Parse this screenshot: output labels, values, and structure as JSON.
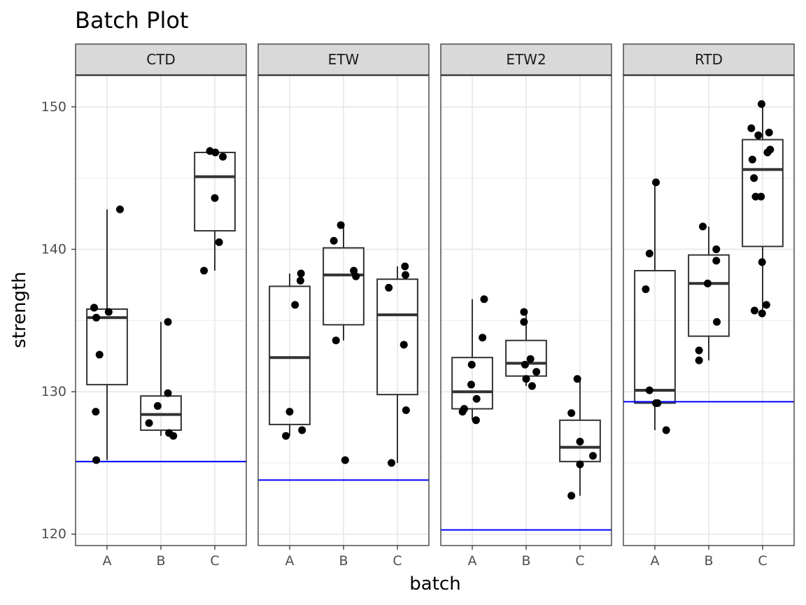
{
  "chart_data": {
    "type": "box",
    "title": "Batch Plot",
    "xlabel": "batch",
    "ylabel": "strength",
    "ylim": [
      119.2,
      152.2
    ],
    "yticks": [
      120,
      130,
      140,
      150
    ],
    "categories": [
      "A",
      "B",
      "C"
    ],
    "grid": true,
    "colors": {
      "reference_line": "#0000ff",
      "points": "#000000",
      "box": "#333333",
      "strip_fill": "#d9d9d9",
      "grid": "#ebebeb"
    },
    "panels": [
      {
        "name": "CTD",
        "reference_line": 125.1,
        "boxes": [
          {
            "category": "A",
            "min": 125.2,
            "q1": 130.5,
            "median": 135.2,
            "q3": 135.8,
            "max": 142.8
          },
          {
            "category": "B",
            "min": 126.9,
            "q1": 127.3,
            "median": 128.4,
            "q3": 129.7,
            "max": 134.9
          },
          {
            "category": "C",
            "min": 138.5,
            "q1": 141.3,
            "median": 145.1,
            "q3": 146.8,
            "max": 146.9
          }
        ],
        "points": [
          {
            "x": "A",
            "jitter": -0.24,
            "y": 135.9
          },
          {
            "x": "A",
            "jitter": -0.2,
            "y": 135.2
          },
          {
            "x": "A",
            "jitter": 0.03,
            "y": 135.6
          },
          {
            "x": "A",
            "jitter": -0.14,
            "y": 132.6
          },
          {
            "x": "A",
            "jitter": -0.21,
            "y": 128.6
          },
          {
            "x": "A",
            "jitter": -0.2,
            "y": 125.2
          },
          {
            "x": "A",
            "jitter": 0.24,
            "y": 142.8
          },
          {
            "x": "B",
            "jitter": -0.22,
            "y": 127.8
          },
          {
            "x": "B",
            "jitter": -0.06,
            "y": 129.0
          },
          {
            "x": "B",
            "jitter": 0.13,
            "y": 129.9
          },
          {
            "x": "B",
            "jitter": 0.15,
            "y": 127.1
          },
          {
            "x": "B",
            "jitter": 0.23,
            "y": 126.9
          },
          {
            "x": "B",
            "jitter": 0.13,
            "y": 134.9
          },
          {
            "x": "C",
            "jitter": -0.09,
            "y": 146.9
          },
          {
            "x": "C",
            "jitter": 0.01,
            "y": 146.8
          },
          {
            "x": "C",
            "jitter": 0.15,
            "y": 146.5
          },
          {
            "x": "C",
            "jitter": 0.0,
            "y": 143.6
          },
          {
            "x": "C",
            "jitter": 0.08,
            "y": 140.5
          },
          {
            "x": "C",
            "jitter": -0.2,
            "y": 138.5
          }
        ]
      },
      {
        "name": "ETW",
        "reference_line": 123.8,
        "boxes": [
          {
            "category": "A",
            "min": 126.9,
            "q1": 127.7,
            "median": 132.4,
            "q3": 137.4,
            "max": 138.3
          },
          {
            "category": "B",
            "min": 133.6,
            "q1": 134.7,
            "median": 138.2,
            "q3": 140.1,
            "max": 141.7
          },
          {
            "category": "C",
            "min": 125.0,
            "q1": 129.8,
            "median": 135.4,
            "q3": 137.9,
            "max": 138.8
          }
        ],
        "points": [
          {
            "x": "A",
            "jitter": 0.21,
            "y": 138.3
          },
          {
            "x": "A",
            "jitter": 0.2,
            "y": 137.8
          },
          {
            "x": "A",
            "jitter": 0.1,
            "y": 136.1
          },
          {
            "x": "A",
            "jitter": 0.0,
            "y": 128.6
          },
          {
            "x": "A",
            "jitter": 0.23,
            "y": 127.3
          },
          {
            "x": "A",
            "jitter": -0.07,
            "y": 126.9
          },
          {
            "x": "B",
            "jitter": -0.18,
            "y": 140.6
          },
          {
            "x": "B",
            "jitter": -0.05,
            "y": 141.7
          },
          {
            "x": "B",
            "jitter": 0.19,
            "y": 138.5
          },
          {
            "x": "B",
            "jitter": 0.23,
            "y": 138.1
          },
          {
            "x": "B",
            "jitter": -0.14,
            "y": 133.6
          },
          {
            "x": "B",
            "jitter": 0.03,
            "y": 125.2
          },
          {
            "x": "C",
            "jitter": -0.16,
            "y": 137.3
          },
          {
            "x": "C",
            "jitter": 0.14,
            "y": 138.8
          },
          {
            "x": "C",
            "jitter": 0.15,
            "y": 138.2
          },
          {
            "x": "C",
            "jitter": 0.12,
            "y": 133.3
          },
          {
            "x": "C",
            "jitter": 0.16,
            "y": 128.7
          },
          {
            "x": "C",
            "jitter": -0.11,
            "y": 125.0
          }
        ]
      },
      {
        "name": "ETW2",
        "reference_line": 120.3,
        "boxes": [
          {
            "category": "A",
            "min": 128.0,
            "q1": 128.8,
            "median": 130.0,
            "q3": 132.4,
            "max": 136.5
          },
          {
            "category": "B",
            "min": 130.4,
            "q1": 131.1,
            "median": 132.0,
            "q3": 133.6,
            "max": 135.6
          },
          {
            "category": "C",
            "min": 122.7,
            "q1": 125.1,
            "median": 126.1,
            "q3": 128.0,
            "max": 130.9
          }
        ],
        "points": [
          {
            "x": "A",
            "jitter": 0.22,
            "y": 136.5
          },
          {
            "x": "A",
            "jitter": 0.19,
            "y": 133.8
          },
          {
            "x": "A",
            "jitter": -0.01,
            "y": 131.9
          },
          {
            "x": "A",
            "jitter": -0.02,
            "y": 130.5
          },
          {
            "x": "A",
            "jitter": 0.08,
            "y": 129.5
          },
          {
            "x": "A",
            "jitter": -0.15,
            "y": 128.8
          },
          {
            "x": "A",
            "jitter": -0.18,
            "y": 128.6
          },
          {
            "x": "A",
            "jitter": 0.07,
            "y": 128.0
          },
          {
            "x": "B",
            "jitter": -0.04,
            "y": 135.6
          },
          {
            "x": "B",
            "jitter": -0.04,
            "y": 134.9
          },
          {
            "x": "B",
            "jitter": 0.08,
            "y": 132.3
          },
          {
            "x": "B",
            "jitter": -0.02,
            "y": 131.9
          },
          {
            "x": "B",
            "jitter": 0.19,
            "y": 131.4
          },
          {
            "x": "B",
            "jitter": 0.0,
            "y": 130.9
          },
          {
            "x": "B",
            "jitter": 0.11,
            "y": 130.4
          },
          {
            "x": "C",
            "jitter": -0.05,
            "y": 130.9
          },
          {
            "x": "C",
            "jitter": -0.16,
            "y": 128.5
          },
          {
            "x": "C",
            "jitter": 0.0,
            "y": 126.5
          },
          {
            "x": "C",
            "jitter": 0.24,
            "y": 125.5
          },
          {
            "x": "C",
            "jitter": 0.0,
            "y": 124.9
          },
          {
            "x": "C",
            "jitter": -0.16,
            "y": 122.7
          }
        ]
      },
      {
        "name": "RTD",
        "reference_line": 129.3,
        "boxes": [
          {
            "category": "A",
            "min": 127.3,
            "q1": 129.2,
            "median": 130.1,
            "q3": 138.5,
            "max": 144.7
          },
          {
            "category": "B",
            "min": 132.2,
            "q1": 133.9,
            "median": 137.6,
            "q3": 139.6,
            "max": 141.6
          },
          {
            "category": "C",
            "min": 135.5,
            "q1": 140.2,
            "median": 145.6,
            "q3": 147.7,
            "max": 150.2
          }
        ],
        "points": [
          {
            "x": "A",
            "jitter": 0.02,
            "y": 144.7
          },
          {
            "x": "A",
            "jitter": -0.1,
            "y": 139.7
          },
          {
            "x": "A",
            "jitter": -0.17,
            "y": 137.2
          },
          {
            "x": "A",
            "jitter": -0.1,
            "y": 130.1
          },
          {
            "x": "A",
            "jitter": 0.02,
            "y": 129.2
          },
          {
            "x": "A",
            "jitter": 0.05,
            "y": 129.2
          },
          {
            "x": "A",
            "jitter": 0.21,
            "y": 127.3
          },
          {
            "x": "B",
            "jitter": -0.11,
            "y": 141.6
          },
          {
            "x": "B",
            "jitter": 0.14,
            "y": 140.0
          },
          {
            "x": "B",
            "jitter": 0.14,
            "y": 139.2
          },
          {
            "x": "B",
            "jitter": -0.02,
            "y": 137.6
          },
          {
            "x": "B",
            "jitter": 0.15,
            "y": 134.9
          },
          {
            "x": "B",
            "jitter": -0.18,
            "y": 132.9
          },
          {
            "x": "B",
            "jitter": -0.18,
            "y": 132.2
          },
          {
            "x": "C",
            "jitter": -0.21,
            "y": 148.5
          },
          {
            "x": "C",
            "jitter": -0.08,
            "y": 148.0
          },
          {
            "x": "C",
            "jitter": 0.12,
            "y": 148.2
          },
          {
            "x": "C",
            "jitter": -0.02,
            "y": 150.2
          },
          {
            "x": "C",
            "jitter": 0.14,
            "y": 147.0
          },
          {
            "x": "C",
            "jitter": 0.09,
            "y": 146.8
          },
          {
            "x": "C",
            "jitter": -0.19,
            "y": 146.3
          },
          {
            "x": "C",
            "jitter": -0.16,
            "y": 145.0
          },
          {
            "x": "C",
            "jitter": -0.13,
            "y": 143.7
          },
          {
            "x": "C",
            "jitter": -0.03,
            "y": 143.7
          },
          {
            "x": "C",
            "jitter": -0.01,
            "y": 139.1
          },
          {
            "x": "C",
            "jitter": 0.07,
            "y": 136.1
          },
          {
            "x": "C",
            "jitter": -0.15,
            "y": 135.7
          },
          {
            "x": "C",
            "jitter": -0.01,
            "y": 135.5
          }
        ]
      }
    ]
  }
}
